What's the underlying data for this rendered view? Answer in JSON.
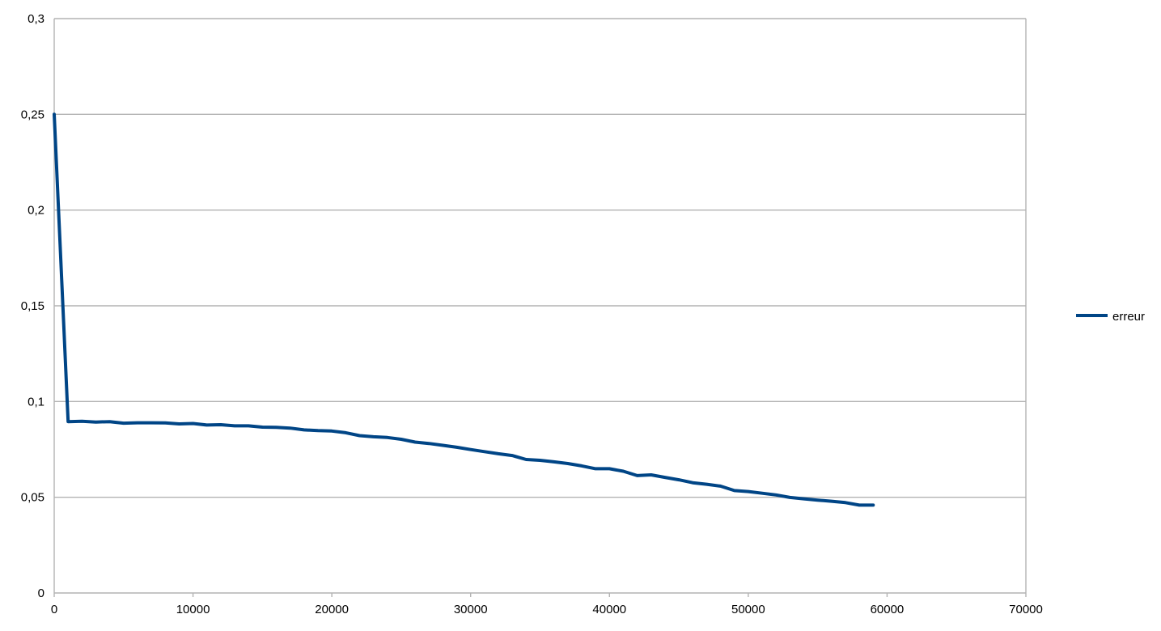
{
  "chart_data": {
    "type": "line",
    "title": "",
    "xlabel": "",
    "ylabel": "",
    "xlim": [
      0,
      70000
    ],
    "ylim": [
      0,
      0.3
    ],
    "x_ticks": [
      0,
      10000,
      20000,
      30000,
      40000,
      50000,
      60000,
      70000
    ],
    "y_ticks": [
      0,
      0.05,
      0.1,
      0.15,
      0.2,
      0.25,
      0.3
    ],
    "y_tick_labels": [
      "0",
      "0,05",
      "0,1",
      "0,15",
      "0,2",
      "0,25",
      "0,3"
    ],
    "x_tick_labels": [
      "0",
      "10000",
      "20000",
      "30000",
      "40000",
      "50000",
      "60000",
      "70000"
    ],
    "grid": "horizontal",
    "legend_position": "right",
    "series": [
      {
        "name": "erreur",
        "color": "#004586",
        "x": [
          0,
          1000,
          2000,
          3000,
          4000,
          5000,
          6000,
          7000,
          8000,
          9000,
          10000,
          11000,
          12000,
          13000,
          14000,
          15000,
          16000,
          17000,
          18000,
          19000,
          20000,
          21000,
          22000,
          23000,
          24000,
          25000,
          26000,
          27000,
          28000,
          29000,
          30000,
          31000,
          32000,
          33000,
          34000,
          35000,
          36000,
          37000,
          38000,
          39000,
          40000,
          41000,
          42000,
          43000,
          44000,
          45000,
          46000,
          47000,
          48000,
          49000,
          50000,
          51000,
          52000,
          53000,
          54000,
          55000,
          56000,
          57000,
          58000,
          59000
        ],
        "values": [
          0.25,
          0.0895,
          0.0897,
          0.0893,
          0.0895,
          0.0887,
          0.0889,
          0.0889,
          0.0888,
          0.0883,
          0.0885,
          0.0877,
          0.0879,
          0.0873,
          0.0873,
          0.0866,
          0.0865,
          0.0861,
          0.0852,
          0.0848,
          0.0846,
          0.0837,
          0.0822,
          0.0816,
          0.0812,
          0.0803,
          0.0788,
          0.0781,
          0.0771,
          0.0761,
          0.0749,
          0.0738,
          0.0727,
          0.0718,
          0.0697,
          0.0693,
          0.0685,
          0.0676,
          0.0664,
          0.0649,
          0.0649,
          0.0636,
          0.0613,
          0.0617,
          0.0604,
          0.0591,
          0.0576,
          0.0568,
          0.0558,
          0.0535,
          0.053,
          0.0521,
          0.0512,
          0.0499,
          0.0492,
          0.0485,
          0.0479,
          0.0472,
          0.0459,
          0.0459
        ]
      }
    ]
  }
}
